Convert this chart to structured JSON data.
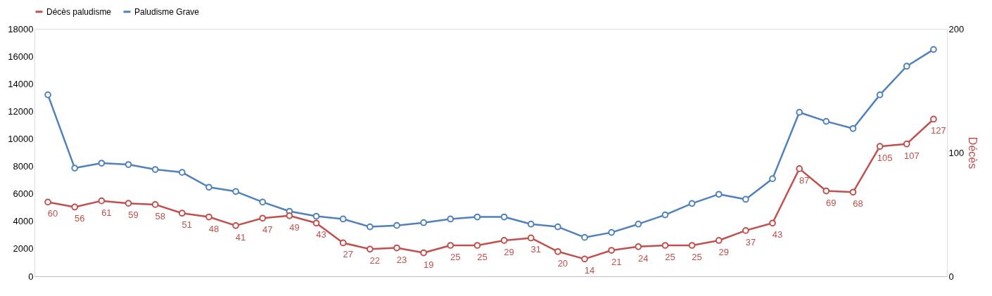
{
  "chart_data": {
    "type": "line",
    "categories": [
      null,
      null,
      null,
      null,
      null,
      null,
      null,
      null,
      null,
      null,
      null,
      null,
      null,
      null,
      null,
      null,
      null,
      null,
      null,
      null,
      null,
      null,
      null,
      null,
      null,
      null,
      null,
      null,
      null,
      null,
      null,
      null,
      null,
      null
    ],
    "series": [
      {
        "name": "Décès paludisme",
        "color": "#c0504d",
        "axis": "y2",
        "values": [
          60,
          56,
          61,
          59,
          58,
          51,
          48,
          41,
          47,
          49,
          43,
          27,
          22,
          23,
          19,
          25,
          25,
          29,
          31,
          20,
          14,
          21,
          24,
          25,
          25,
          29,
          37,
          43,
          87,
          69,
          68,
          105,
          107,
          127
        ],
        "value_labels": [
          "60",
          "56",
          "61",
          "59",
          "58",
          "51",
          "48",
          "41",
          "47",
          "49",
          "43",
          "27",
          "22",
          "23",
          "19",
          "25",
          "25",
          "29",
          "31",
          "20",
          "14",
          "21",
          "24",
          "25",
          "25",
          "29",
          "37",
          "43",
          "87",
          "69",
          "68",
          "105",
          "107",
          "127"
        ]
      },
      {
        "name": "Paludisme Grave",
        "color": "#4f81bd",
        "values": [
          13200,
          7870,
          8230,
          8130,
          7770,
          7560,
          6480,
          6170,
          5400,
          4730,
          4370,
          4170,
          3600,
          3700,
          3900,
          4170,
          4320,
          4320,
          3800,
          3600,
          2830,
          3190,
          3800,
          4470,
          5300,
          5970,
          5600,
          7100,
          11930,
          11270,
          10750,
          13200,
          15280,
          16500
        ]
      }
    ],
    "ylim": [
      0,
      18000
    ],
    "yticks": [
      0,
      2000,
      4000,
      6000,
      8000,
      10000,
      12000,
      14000,
      16000,
      18000
    ],
    "y2lim": [
      0,
      200
    ],
    "y2ticks": [
      0,
      100,
      200
    ],
    "y2label": "Décès",
    "marker": "circle",
    "line_style": "solid",
    "legend": "top",
    "grid": false,
    "tick_labels": "y"
  }
}
